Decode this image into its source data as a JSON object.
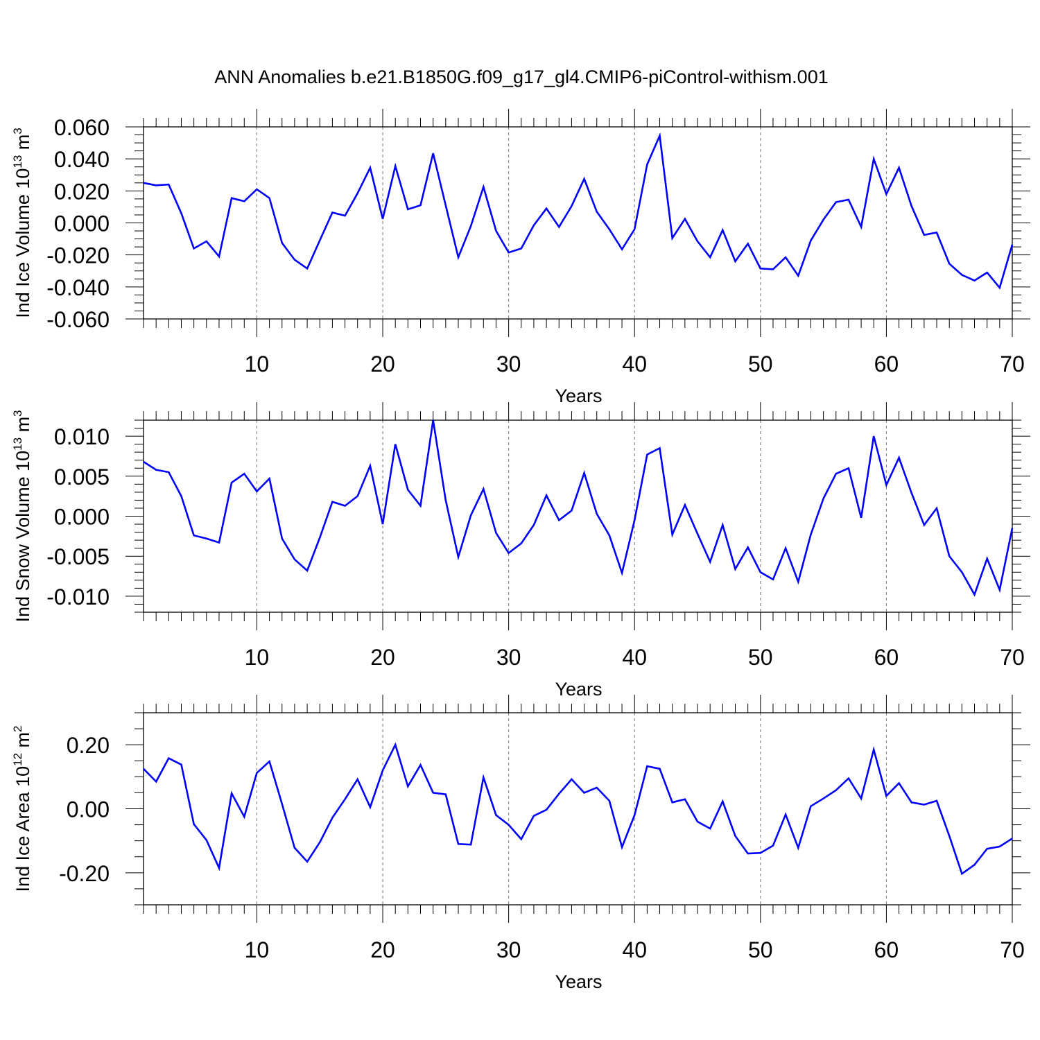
{
  "title": "ANN Anomalies b.e21.B1850G.f09_g17_gl4.CMIP6-piControl-withism.001",
  "colors": {
    "line": "#0000ff",
    "axis": "#000000",
    "grid": "#777777"
  },
  "chart_data": [
    {
      "type": "line",
      "ylabel": {
        "main": "Ind Ice Volume 10",
        "exp": "13",
        "unit": " m",
        "unit_exp": "3"
      },
      "xlabel": "Years",
      "xlim": [
        1,
        70
      ],
      "ylim": [
        -0.06,
        0.06
      ],
      "xticks": [
        10,
        20,
        30,
        40,
        50,
        60,
        70
      ],
      "xtick_labels": [
        "10",
        "20",
        "30",
        "40",
        "50",
        "60",
        "70"
      ],
      "yticks": [
        -0.06,
        -0.04,
        -0.02,
        0.0,
        0.02,
        0.04,
        0.06
      ],
      "ytick_labels": [
        "-0.060",
        "-0.040",
        "-0.020",
        "0.000",
        "0.020",
        "0.040",
        "0.060"
      ],
      "yminor": 0.005,
      "grid_x": [
        10,
        20,
        30,
        40,
        50,
        60
      ],
      "series": [
        {
          "name": "Ind Ice Volume",
          "values": [
            0.025,
            0.0235,
            0.024,
            0.006,
            -0.016,
            -0.0115,
            -0.021,
            0.0155,
            0.0135,
            0.021,
            0.0155,
            -0.0125,
            -0.023,
            -0.0285,
            -0.011,
            0.0065,
            0.0045,
            0.0185,
            0.0345,
            0.0025,
            0.0355,
            0.0085,
            0.011,
            0.0435,
            0.011,
            -0.0215,
            -0.002,
            0.0225,
            -0.005,
            -0.0185,
            -0.016,
            -0.0015,
            0.009,
            -0.0025,
            0.0105,
            0.0275,
            0.007,
            -0.004,
            -0.0165,
            -0.004,
            0.0365,
            0.0545,
            -0.0095,
            0.0025,
            -0.0115,
            -0.0215,
            -0.0045,
            -0.024,
            -0.013,
            -0.0285,
            -0.029,
            -0.0215,
            -0.033,
            -0.011,
            0.002,
            0.013,
            0.0145,
            -0.0025,
            0.04,
            0.018,
            0.0345,
            0.0105,
            -0.0075,
            -0.006,
            -0.0255,
            -0.0325,
            -0.036,
            -0.031,
            -0.0405,
            -0.0135
          ]
        }
      ]
    },
    {
      "type": "line",
      "ylabel": {
        "main": "Ind Snow Volume 10",
        "exp": "13",
        "unit": " m",
        "unit_exp": "3"
      },
      "xlabel": "Years",
      "xlim": [
        1,
        70
      ],
      "ylim": [
        -0.012,
        0.012
      ],
      "xticks": [
        10,
        20,
        30,
        40,
        50,
        60,
        70
      ],
      "xtick_labels": [
        "10",
        "20",
        "30",
        "40",
        "50",
        "60",
        "70"
      ],
      "yticks": [
        -0.01,
        -0.005,
        0.0,
        0.005,
        0.01
      ],
      "ytick_labels": [
        "-0.010",
        "-0.005",
        "0.000",
        "0.005",
        "0.010"
      ],
      "yminor": 0.001,
      "grid_x": [
        10,
        20,
        30,
        40,
        50,
        60
      ],
      "series": [
        {
          "name": "Ind Snow Volume",
          "values": [
            0.0068,
            0.0058,
            0.0055,
            0.0025,
            -0.0024,
            -0.0028,
            -0.0033,
            0.0042,
            0.0053,
            0.0031,
            0.0047,
            -0.0028,
            -0.0054,
            -0.0068,
            -0.0027,
            0.0018,
            0.0013,
            0.0025,
            0.0063,
            -0.001,
            0.009,
            0.0033,
            0.0013,
            0.012,
            0.002,
            -0.0051,
            0.0001,
            0.0034,
            -0.0021,
            -0.0046,
            -0.0034,
            -0.0011,
            0.0026,
            -0.0005,
            0.0007,
            0.0054,
            0.0003,
            -0.0024,
            -0.0071,
            -0.0005,
            0.0077,
            0.0085,
            -0.0023,
            0.0014,
            -0.0022,
            -0.0057,
            -0.0011,
            -0.0066,
            -0.0039,
            -0.007,
            -0.0079,
            -0.004,
            -0.0082,
            -0.0023,
            0.0022,
            0.0053,
            0.006,
            -0.0002,
            0.01,
            0.0039,
            0.0073,
            0.0029,
            -0.0011,
            0.001,
            -0.005,
            -0.007,
            -0.0098,
            -0.0053,
            -0.0092,
            -0.0015
          ]
        }
      ]
    },
    {
      "type": "line",
      "ylabel": {
        "main": "Ind Ice Area 10",
        "exp": "12",
        "unit": " m",
        "unit_exp": "2"
      },
      "xlabel": "Years",
      "xlim": [
        1,
        70
      ],
      "ylim": [
        -0.3,
        0.3
      ],
      "xticks": [
        10,
        20,
        30,
        40,
        50,
        60,
        70
      ],
      "xtick_labels": [
        "10",
        "20",
        "30",
        "40",
        "50",
        "60",
        "70"
      ],
      "yticks": [
        -0.2,
        0.0,
        0.2
      ],
      "ytick_labels": [
        "-0.20",
        "0.00",
        "0.20"
      ],
      "yminor": 0.05,
      "grid_x": [
        10,
        20,
        30,
        40,
        50,
        60
      ],
      "series": [
        {
          "name": "Ind Ice Area",
          "values": [
            0.125,
            0.085,
            0.158,
            0.138,
            -0.048,
            -0.098,
            -0.185,
            0.048,
            -0.025,
            0.112,
            0.148,
            0.015,
            -0.122,
            -0.165,
            -0.105,
            -0.028,
            0.03,
            0.092,
            0.005,
            0.12,
            0.2,
            0.07,
            0.137,
            0.05,
            0.045,
            -0.11,
            -0.112,
            0.098,
            -0.02,
            -0.05,
            -0.095,
            -0.022,
            -0.003,
            0.047,
            0.092,
            0.05,
            0.066,
            0.025,
            -0.12,
            -0.02,
            0.133,
            0.125,
            0.02,
            0.03,
            -0.04,
            -0.062,
            0.023,
            -0.085,
            -0.14,
            -0.138,
            -0.115,
            -0.018,
            -0.122,
            0.008,
            0.032,
            0.058,
            0.095,
            0.032,
            0.185,
            0.04,
            0.08,
            0.02,
            0.013,
            0.025,
            -0.085,
            -0.203,
            -0.175,
            -0.125,
            -0.118,
            -0.093
          ]
        }
      ]
    }
  ]
}
